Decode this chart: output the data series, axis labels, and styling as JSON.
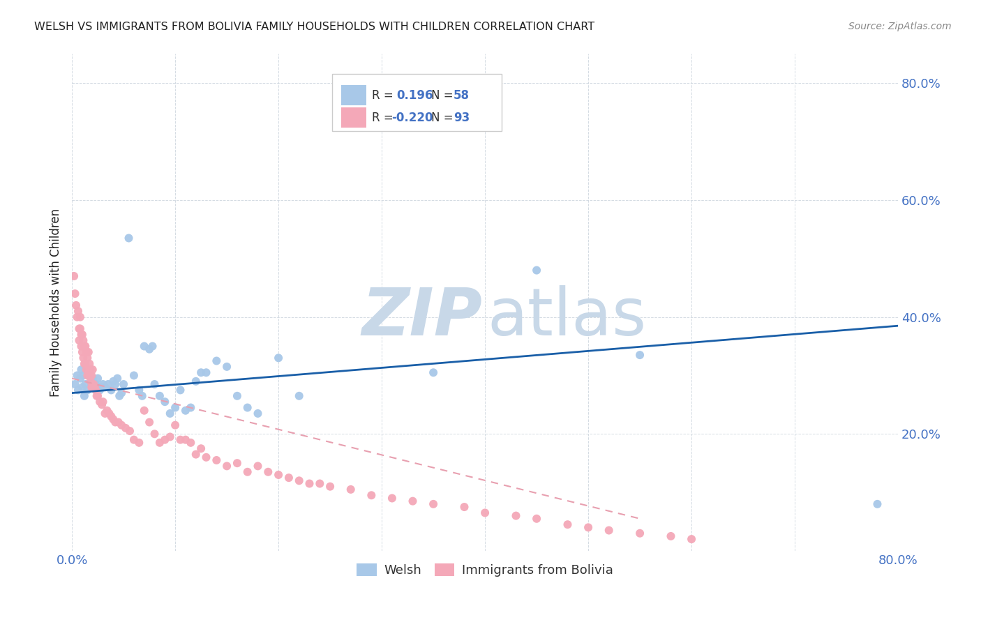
{
  "title": "WELSH VS IMMIGRANTS FROM BOLIVIA FAMILY HOUSEHOLDS WITH CHILDREN CORRELATION CHART",
  "source": "Source: ZipAtlas.com",
  "ylabel": "Family Households with Children",
  "welsh_R": 0.196,
  "welsh_N": 58,
  "bolivia_R": -0.22,
  "bolivia_N": 93,
  "welsh_color": "#a8c8e8",
  "bolivia_color": "#f4a8b8",
  "welsh_line_color": "#1a5fa8",
  "bolivia_line_color": "#e8a0b0",
  "watermark_zip_color": "#c8d8e8",
  "watermark_atlas_color": "#c8d8e8",
  "tick_color": "#4472c4",
  "text_color": "#222222",
  "source_color": "#888888",
  "grid_color": "#d0d8e0",
  "legend_border_color": "#cccccc",
  "xlim": [
    0.0,
    0.8
  ],
  "ylim": [
    0.0,
    0.85
  ],
  "welsh_line_x0": 0.0,
  "welsh_line_y0": 0.27,
  "welsh_line_x1": 0.8,
  "welsh_line_y1": 0.385,
  "bolivia_line_x0": 0.0,
  "bolivia_line_y0": 0.295,
  "bolivia_line_x1": 0.55,
  "bolivia_line_y1": 0.055,
  "welsh_scatter_x": [
    0.003,
    0.005,
    0.006,
    0.008,
    0.009,
    0.01,
    0.011,
    0.012,
    0.013,
    0.015,
    0.016,
    0.018,
    0.019,
    0.02,
    0.022,
    0.023,
    0.025,
    0.027,
    0.028,
    0.03,
    0.032,
    0.035,
    0.038,
    0.04,
    0.042,
    0.044,
    0.046,
    0.048,
    0.05,
    0.055,
    0.06,
    0.065,
    0.068,
    0.07,
    0.075,
    0.078,
    0.08,
    0.085,
    0.09,
    0.095,
    0.1,
    0.105,
    0.11,
    0.115,
    0.12,
    0.125,
    0.13,
    0.14,
    0.15,
    0.16,
    0.17,
    0.18,
    0.2,
    0.22,
    0.35,
    0.45,
    0.55,
    0.78
  ],
  "welsh_scatter_y": [
    0.285,
    0.3,
    0.275,
    0.295,
    0.31,
    0.28,
    0.3,
    0.265,
    0.285,
    0.275,
    0.3,
    0.29,
    0.285,
    0.295,
    0.28,
    0.285,
    0.295,
    0.275,
    0.28,
    0.285,
    0.28,
    0.285,
    0.275,
    0.29,
    0.285,
    0.295,
    0.265,
    0.27,
    0.285,
    0.535,
    0.3,
    0.275,
    0.265,
    0.35,
    0.345,
    0.35,
    0.285,
    0.265,
    0.255,
    0.235,
    0.245,
    0.275,
    0.24,
    0.245,
    0.29,
    0.305,
    0.305,
    0.325,
    0.315,
    0.265,
    0.245,
    0.235,
    0.33,
    0.265,
    0.305,
    0.48,
    0.335,
    0.08
  ],
  "bolivia_scatter_x": [
    0.002,
    0.003,
    0.004,
    0.005,
    0.006,
    0.007,
    0.007,
    0.008,
    0.008,
    0.009,
    0.009,
    0.01,
    0.01,
    0.011,
    0.011,
    0.012,
    0.012,
    0.013,
    0.013,
    0.014,
    0.014,
    0.015,
    0.015,
    0.016,
    0.016,
    0.017,
    0.017,
    0.018,
    0.018,
    0.019,
    0.019,
    0.02,
    0.02,
    0.021,
    0.022,
    0.023,
    0.024,
    0.025,
    0.027,
    0.029,
    0.03,
    0.032,
    0.034,
    0.036,
    0.038,
    0.04,
    0.042,
    0.045,
    0.048,
    0.052,
    0.056,
    0.06,
    0.065,
    0.07,
    0.075,
    0.08,
    0.085,
    0.09,
    0.095,
    0.1,
    0.105,
    0.11,
    0.115,
    0.12,
    0.125,
    0.13,
    0.14,
    0.15,
    0.16,
    0.17,
    0.18,
    0.19,
    0.2,
    0.21,
    0.22,
    0.23,
    0.24,
    0.25,
    0.27,
    0.29,
    0.31,
    0.33,
    0.35,
    0.38,
    0.4,
    0.43,
    0.45,
    0.48,
    0.5,
    0.52,
    0.55,
    0.58,
    0.6
  ],
  "bolivia_scatter_y": [
    0.47,
    0.44,
    0.42,
    0.4,
    0.41,
    0.38,
    0.36,
    0.4,
    0.38,
    0.35,
    0.37,
    0.37,
    0.34,
    0.36,
    0.33,
    0.35,
    0.32,
    0.35,
    0.32,
    0.34,
    0.31,
    0.33,
    0.3,
    0.34,
    0.31,
    0.32,
    0.3,
    0.31,
    0.29,
    0.3,
    0.28,
    0.31,
    0.28,
    0.285,
    0.28,
    0.275,
    0.265,
    0.265,
    0.255,
    0.25,
    0.255,
    0.235,
    0.24,
    0.235,
    0.23,
    0.225,
    0.22,
    0.22,
    0.215,
    0.21,
    0.205,
    0.19,
    0.185,
    0.24,
    0.22,
    0.2,
    0.185,
    0.19,
    0.195,
    0.215,
    0.19,
    0.19,
    0.185,
    0.165,
    0.175,
    0.16,
    0.155,
    0.145,
    0.15,
    0.135,
    0.145,
    0.135,
    0.13,
    0.125,
    0.12,
    0.115,
    0.115,
    0.11,
    0.105,
    0.095,
    0.09,
    0.085,
    0.08,
    0.075,
    0.065,
    0.06,
    0.055,
    0.045,
    0.04,
    0.035,
    0.03,
    0.025,
    0.02
  ]
}
